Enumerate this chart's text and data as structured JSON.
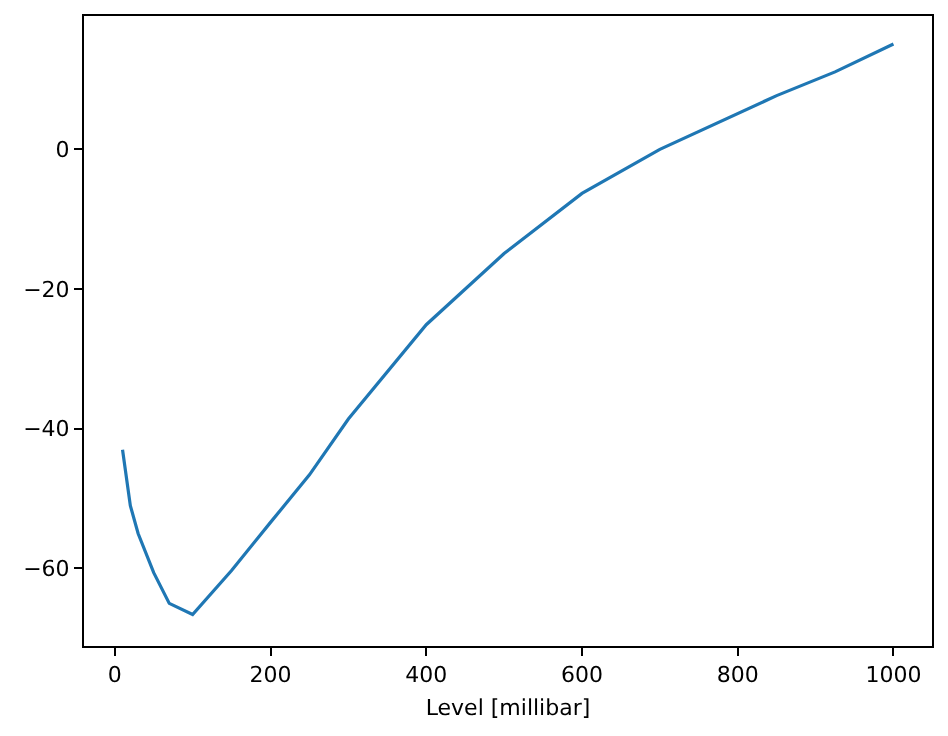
{
  "chart_data": {
    "type": "line",
    "xlabel": "Level [millibar]",
    "x": [
      10,
      20,
      30,
      50,
      70,
      100,
      150,
      200,
      250,
      300,
      400,
      500,
      600,
      700,
      850,
      925,
      1000
    ],
    "series": [
      {
        "color": "#1f77b4",
        "values": [
          -43,
          -51,
          -55,
          -60.6,
          -65,
          -66.6,
          -60.3,
          -53.4,
          -46.6,
          -38.6,
          -25.1,
          -14.9,
          -6.3,
          0,
          7.7,
          11.1,
          15.1
        ]
      }
    ],
    "xlim": [
      -39.5,
      1049.5
    ],
    "ylim": [
      -71.1,
      19.1
    ],
    "xticks": [
      0,
      200,
      400,
      600,
      800,
      1000
    ],
    "yticks": [
      -60,
      -40,
      -20,
      0
    ],
    "grid": false,
    "legend": false,
    "marker": "none",
    "line_style": "solid"
  }
}
